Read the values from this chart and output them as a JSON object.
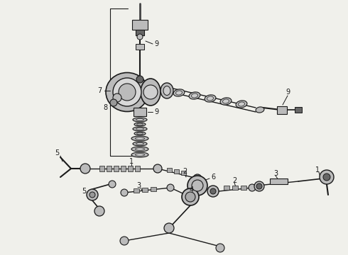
{
  "bg_color": "#f0f0eb",
  "line_color": "#1a1a1a",
  "gray_fill": "#888888",
  "light_gray": "#bbbbbb",
  "mid_gray": "#666666",
  "dark_gray": "#444444"
}
